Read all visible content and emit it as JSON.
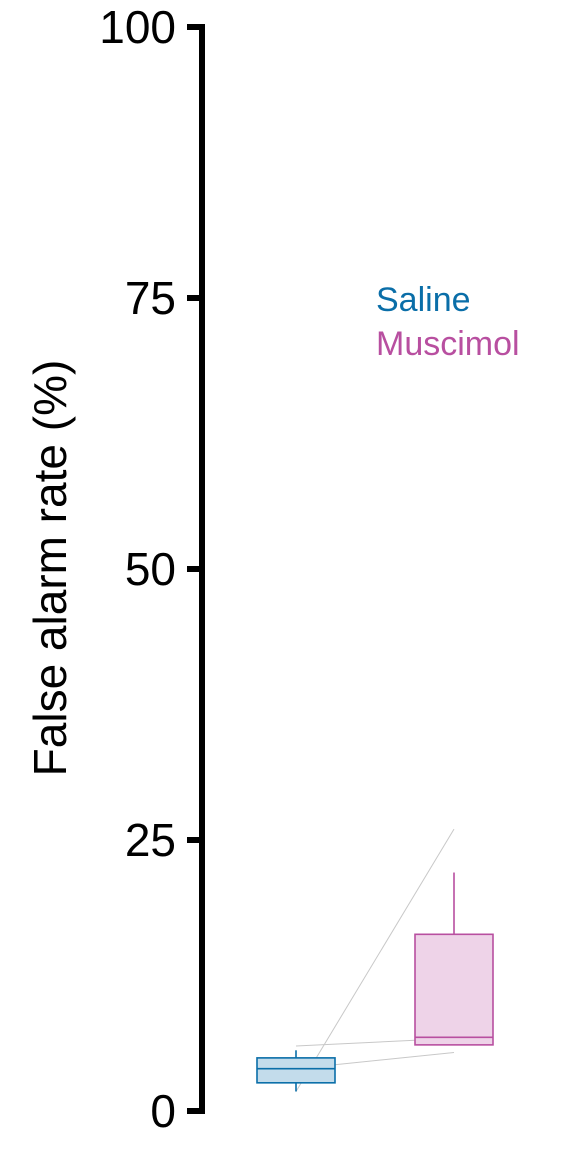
{
  "chart_data": {
    "type": "box",
    "ylabel": "False alarm rate (%)",
    "ylim": [
      0,
      100
    ],
    "yticks": [
      0,
      25,
      50,
      75,
      100
    ],
    "grid": false,
    "legend_position": "top-right",
    "series": [
      {
        "name": "Saline",
        "color": "#0a6ea8",
        "fill": "#c3dceb",
        "whisker_low": 1.8,
        "q1": 2.6,
        "median": 3.9,
        "q3": 4.9,
        "whisker_high": 5.6
      },
      {
        "name": "Muscimol",
        "color": "#b84fa0",
        "fill": "#eed3e8",
        "whisker_low": 6.1,
        "q1": 6.1,
        "median": 6.8,
        "q3": 16.3,
        "whisker_high": 22.0
      }
    ],
    "paired_lines": [
      {
        "saline": 1.8,
        "muscimol": 26.0
      },
      {
        "saline": 3.9,
        "muscimol": 5.4
      },
      {
        "saline": 6.0,
        "muscimol": 6.7
      }
    ]
  }
}
